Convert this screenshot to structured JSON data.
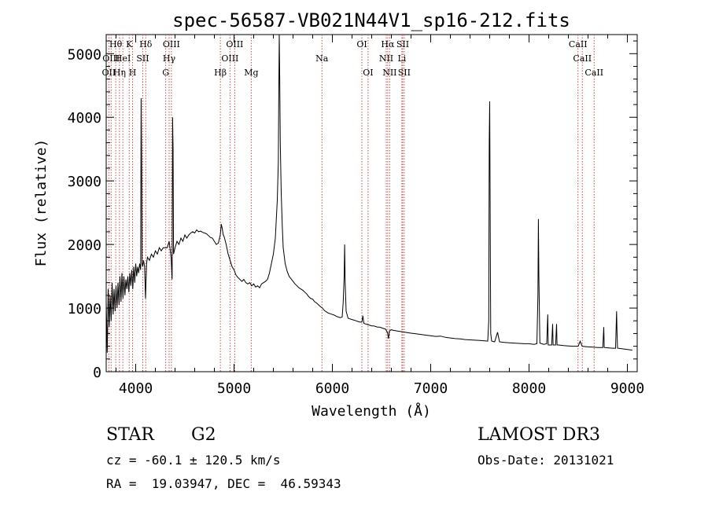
{
  "chart_data": {
    "type": "line",
    "title": "spec-56587-VB021N44V1_sp16-212.fits",
    "xlabel": "Wavelength (Å)",
    "ylabel": "Flux (relative)",
    "xlim": [
      3700,
      9100
    ],
    "ylim": [
      0,
      5300
    ],
    "x_ticks": [
      4000,
      5000,
      6000,
      7000,
      8000,
      9000
    ],
    "y_ticks": [
      0,
      1000,
      2000,
      3000,
      4000,
      5000
    ],
    "grid": false,
    "line_color": "#000000",
    "marker_color": "#c0504d",
    "series": [
      {
        "name": "flux",
        "points": [
          [
            3700,
            1100
          ],
          [
            3710,
            300
          ],
          [
            3720,
            1300
          ],
          [
            3730,
            700
          ],
          [
            3740,
            1200
          ],
          [
            3750,
            800
          ],
          [
            3760,
            1400
          ],
          [
            3770,
            900
          ],
          [
            3780,
            1300
          ],
          [
            3790,
            950
          ],
          [
            3800,
            1350
          ],
          [
            3810,
            1000
          ],
          [
            3820,
            1400
          ],
          [
            3830,
            1050
          ],
          [
            3840,
            1500
          ],
          [
            3850,
            1100
          ],
          [
            3860,
            1550
          ],
          [
            3870,
            1150
          ],
          [
            3880,
            1500
          ],
          [
            3890,
            1200
          ],
          [
            3900,
            1450
          ],
          [
            3910,
            1300
          ],
          [
            3920,
            1500
          ],
          [
            3930,
            1250
          ],
          [
            3940,
            1550
          ],
          [
            3950,
            1350
          ],
          [
            3960,
            1600
          ],
          [
            3970,
            1300
          ],
          [
            3980,
            1650
          ],
          [
            3990,
            1400
          ],
          [
            4000,
            1700
          ],
          [
            4010,
            1500
          ],
          [
            4020,
            1650
          ],
          [
            4030,
            1550
          ],
          [
            4040,
            1700
          ],
          [
            4050,
            1600
          ],
          [
            4055,
            4300
          ],
          [
            4060,
            3400
          ],
          [
            4065,
            1700
          ],
          [
            4070,
            1650
          ],
          [
            4080,
            1750
          ],
          [
            4090,
            1650
          ],
          [
            4100,
            1150
          ],
          [
            4110,
            1700
          ],
          [
            4120,
            1800
          ],
          [
            4140,
            1750
          ],
          [
            4160,
            1850
          ],
          [
            4180,
            1800
          ],
          [
            4200,
            1900
          ],
          [
            4220,
            1850
          ],
          [
            4240,
            1950
          ],
          [
            4260,
            1900
          ],
          [
            4280,
            1950
          ],
          [
            4300,
            1950
          ],
          [
            4320,
            1950
          ],
          [
            4340,
            2050
          ],
          [
            4360,
            1800
          ],
          [
            4370,
            1450
          ],
          [
            4375,
            4000
          ],
          [
            4380,
            3500
          ],
          [
            4385,
            1850
          ],
          [
            4400,
            1950
          ],
          [
            4420,
            2050
          ],
          [
            4440,
            2000
          ],
          [
            4460,
            2100
          ],
          [
            4480,
            2050
          ],
          [
            4500,
            2150
          ],
          [
            4520,
            2100
          ],
          [
            4540,
            2150
          ],
          [
            4560,
            2180
          ],
          [
            4580,
            2200
          ],
          [
            4600,
            2180
          ],
          [
            4620,
            2230
          ],
          [
            4640,
            2200
          ],
          [
            4660,
            2210
          ],
          [
            4680,
            2190
          ],
          [
            4700,
            2180
          ],
          [
            4720,
            2170
          ],
          [
            4740,
            2140
          ],
          [
            4760,
            2110
          ],
          [
            4780,
            2100
          ],
          [
            4800,
            2050
          ],
          [
            4820,
            2000
          ],
          [
            4840,
            2020
          ],
          [
            4860,
            2150
          ],
          [
            4870,
            2320
          ],
          [
            4880,
            2250
          ],
          [
            4890,
            2150
          ],
          [
            4900,
            2120
          ],
          [
            4920,
            2000
          ],
          [
            4940,
            1850
          ],
          [
            4960,
            1750
          ],
          [
            4980,
            1650
          ],
          [
            5000,
            1600
          ],
          [
            5020,
            1520
          ],
          [
            5040,
            1480
          ],
          [
            5060,
            1450
          ],
          [
            5080,
            1420
          ],
          [
            5100,
            1450
          ],
          [
            5120,
            1400
          ],
          [
            5140,
            1380
          ],
          [
            5160,
            1400
          ],
          [
            5180,
            1350
          ],
          [
            5200,
            1380
          ],
          [
            5220,
            1330
          ],
          [
            5240,
            1350
          ],
          [
            5260,
            1320
          ],
          [
            5280,
            1380
          ],
          [
            5300,
            1400
          ],
          [
            5320,
            1420
          ],
          [
            5340,
            1450
          ],
          [
            5360,
            1550
          ],
          [
            5380,
            1700
          ],
          [
            5400,
            1850
          ],
          [
            5420,
            2100
          ],
          [
            5440,
            2700
          ],
          [
            5450,
            3300
          ],
          [
            5455,
            4400
          ],
          [
            5460,
            5300
          ],
          [
            5465,
            4600
          ],
          [
            5470,
            3600
          ],
          [
            5480,
            2800
          ],
          [
            5490,
            2300
          ],
          [
            5500,
            1950
          ],
          [
            5520,
            1700
          ],
          [
            5540,
            1580
          ],
          [
            5560,
            1500
          ],
          [
            5580,
            1460
          ],
          [
            5600,
            1420
          ],
          [
            5620,
            1380
          ],
          [
            5640,
            1350
          ],
          [
            5660,
            1320
          ],
          [
            5680,
            1300
          ],
          [
            5700,
            1280
          ],
          [
            5720,
            1250
          ],
          [
            5740,
            1220
          ],
          [
            5760,
            1180
          ],
          [
            5780,
            1150
          ],
          [
            5800,
            1140
          ],
          [
            5820,
            1100
          ],
          [
            5840,
            1080
          ],
          [
            5860,
            1050
          ],
          [
            5880,
            1020
          ],
          [
            5900,
            1000
          ],
          [
            5920,
            960
          ],
          [
            5940,
            940
          ],
          [
            5960,
            920
          ],
          [
            5980,
            910
          ],
          [
            6000,
            900
          ],
          [
            6020,
            890
          ],
          [
            6040,
            870
          ],
          [
            6060,
            860
          ],
          [
            6080,
            850
          ],
          [
            6100,
            860
          ],
          [
            6110,
            1100
          ],
          [
            6120,
            1500
          ],
          [
            6125,
            2000
          ],
          [
            6130,
            1400
          ],
          [
            6140,
            950
          ],
          [
            6160,
            840
          ],
          [
            6180,
            830
          ],
          [
            6200,
            820
          ],
          [
            6220,
            810
          ],
          [
            6240,
            800
          ],
          [
            6260,
            790
          ],
          [
            6280,
            780
          ],
          [
            6300,
            780
          ],
          [
            6310,
            880
          ],
          [
            6320,
            760
          ],
          [
            6340,
            750
          ],
          [
            6360,
            740
          ],
          [
            6380,
            730
          ],
          [
            6400,
            720
          ],
          [
            6420,
            720
          ],
          [
            6440,
            710
          ],
          [
            6460,
            700
          ],
          [
            6480,
            700
          ],
          [
            6500,
            690
          ],
          [
            6520,
            680
          ],
          [
            6540,
            670
          ],
          [
            6560,
            620
          ],
          [
            6570,
            520
          ],
          [
            6580,
            640
          ],
          [
            6600,
            660
          ],
          [
            6620,
            650
          ],
          [
            6640,
            645
          ],
          [
            6660,
            640
          ],
          [
            6680,
            635
          ],
          [
            6700,
            630
          ],
          [
            6720,
            625
          ],
          [
            6740,
            620
          ],
          [
            6760,
            615
          ],
          [
            6800,
            605
          ],
          [
            6850,
            595
          ],
          [
            6900,
            585
          ],
          [
            6950,
            575
          ],
          [
            7000,
            565
          ],
          [
            7050,
            555
          ],
          [
            7100,
            560
          ],
          [
            7150,
            540
          ],
          [
            7200,
            530
          ],
          [
            7250,
            520
          ],
          [
            7300,
            515
          ],
          [
            7350,
            505
          ],
          [
            7400,
            500
          ],
          [
            7450,
            495
          ],
          [
            7500,
            490
          ],
          [
            7550,
            485
          ],
          [
            7580,
            480
          ],
          [
            7590,
            800
          ],
          [
            7595,
            3600
          ],
          [
            7600,
            4250
          ],
          [
            7605,
            2500
          ],
          [
            7610,
            600
          ],
          [
            7620,
            480
          ],
          [
            7650,
            470
          ],
          [
            7680,
            620
          ],
          [
            7700,
            470
          ],
          [
            7750,
            460
          ],
          [
            7800,
            455
          ],
          [
            7850,
            450
          ],
          [
            7900,
            445
          ],
          [
            7950,
            440
          ],
          [
            8000,
            440
          ],
          [
            8050,
            430
          ],
          [
            8080,
            440
          ],
          [
            8090,
            1200
          ],
          [
            8095,
            2400
          ],
          [
            8100,
            1500
          ],
          [
            8110,
            450
          ],
          [
            8150,
            430
          ],
          [
            8180,
            440
          ],
          [
            8190,
            900
          ],
          [
            8195,
            420
          ],
          [
            8230,
            420
          ],
          [
            8240,
            750
          ],
          [
            8245,
            420
          ],
          [
            8270,
            420
          ],
          [
            8280,
            750
          ],
          [
            8285,
            420
          ],
          [
            8300,
            420
          ],
          [
            8350,
            410
          ],
          [
            8400,
            405
          ],
          [
            8450,
            400
          ],
          [
            8500,
            400
          ],
          [
            8520,
            480
          ],
          [
            8540,
            400
          ],
          [
            8600,
            390
          ],
          [
            8650,
            385
          ],
          [
            8700,
            380
          ],
          [
            8750,
            380
          ],
          [
            8760,
            700
          ],
          [
            8765,
            380
          ],
          [
            8800,
            375
          ],
          [
            8850,
            370
          ],
          [
            8880,
            370
          ],
          [
            8890,
            950
          ],
          [
            8895,
            600
          ],
          [
            8900,
            370
          ],
          [
            8950,
            360
          ],
          [
            9000,
            350
          ],
          [
            9050,
            340
          ]
        ]
      }
    ],
    "line_markers": [
      {
        "w": 3727,
        "label": "OII",
        "row": 2
      },
      {
        "w": 3750,
        "label": "OIII",
        "row": 1
      },
      {
        "w": 3797,
        "label": "Hθ",
        "row": 0
      },
      {
        "w": 3835,
        "label": "Hη",
        "row": 2
      },
      {
        "w": 3869,
        "label": "HeI",
        "row": 1
      },
      {
        "w": 3934,
        "label": "K",
        "row": 0
      },
      {
        "w": 3968,
        "label": "H",
        "row": 2
      },
      {
        "w": 4072,
        "label": "SII",
        "row": 1
      },
      {
        "w": 4102,
        "label": "Hδ",
        "row": 0
      },
      {
        "w": 4305,
        "label": "G",
        "row": 2
      },
      {
        "w": 4340,
        "label": "Hγ",
        "row": 1
      },
      {
        "w": 4363,
        "label": "OIII",
        "row": 0
      },
      {
        "w": 4861,
        "label": "Hβ",
        "row": 2
      },
      {
        "w": 4959,
        "label": "OIII",
        "row": 1
      },
      {
        "w": 5007,
        "label": "OIII",
        "row": 0
      },
      {
        "w": 5175,
        "label": "Mg",
        "row": 2
      },
      {
        "w": 5894,
        "label": "Na",
        "row": 1
      },
      {
        "w": 6300,
        "label": "OI",
        "row": 0
      },
      {
        "w": 6363,
        "label": "OI",
        "row": 2
      },
      {
        "w": 6548,
        "label": "NII",
        "row": 1
      },
      {
        "w": 6563,
        "label": "Hα",
        "row": 0
      },
      {
        "w": 6583,
        "label": "NII",
        "row": 2
      },
      {
        "w": 6716,
        "label": "SII",
        "row": 0
      },
      {
        "w": 6707,
        "label": "Li",
        "row": 1
      },
      {
        "w": 6731,
        "label": "SII",
        "row": 2
      },
      {
        "w": 8498,
        "label": "CaII",
        "row": 0
      },
      {
        "w": 8542,
        "label": "CaII",
        "row": 1
      },
      {
        "w": 8662,
        "label": "CaII",
        "row": 2
      }
    ]
  },
  "info": {
    "object_class": "STAR",
    "subclass": "G2",
    "survey": "LAMOST DR3",
    "cz": "cz = -60.1 ± 120.5 km/s",
    "obs_date": "Obs-Date: 20131021",
    "coords": "RA =  19.03947, DEC =  46.59343"
  }
}
